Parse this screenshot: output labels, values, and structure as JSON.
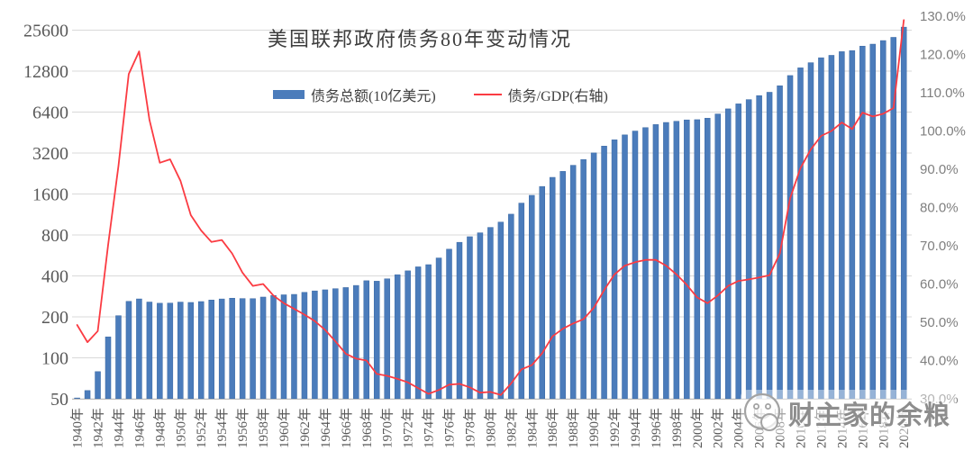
{
  "title": "美国联邦政府债务80年变动情况",
  "legend": {
    "bars_label": "债务总额(10亿美元)",
    "line_label": "债务/GDP(右轴)"
  },
  "watermark": {
    "text": "财主家的余粮",
    "icon": "smiley-face-logo"
  },
  "colors": {
    "bar_fill": "#4b7cbb",
    "bar_edge": "#3a68a3",
    "line": "#fb3b42",
    "gridline": "#d9d9d9",
    "axis_line": "#bfbfbf",
    "left_axis_text": "#595959",
    "x_axis_text": "#595959",
    "right_axis_text": "#7f7f7f",
    "title_text": "#3d3d3d"
  },
  "chart_data": {
    "type": "bar+line",
    "title": "美国联邦政府债务80年变动情况",
    "grid": "horizontal",
    "legend_position": "top-center",
    "left_axis": {
      "scale": "log2",
      "ticks": [
        25600,
        12800,
        6400,
        3200,
        1600,
        800,
        400,
        200,
        100,
        50
      ],
      "min": 50,
      "max": 25600,
      "label": "债务总额(10亿美元)"
    },
    "right_axis": {
      "scale": "linear",
      "ticks": [
        "130.0%",
        "120.0%",
        "110.0%",
        "100.0%",
        "90.0%",
        "80.0%",
        "70.0%",
        "60.0%",
        "50.0%",
        "40.0%",
        "30.0%"
      ],
      "min": 30,
      "max": 130,
      "label": "债务/GDP(右轴)"
    },
    "x_ticks": [
      "1940年",
      "1942年",
      "1944年",
      "1946年",
      "1948年",
      "1950年",
      "1952年",
      "1954年",
      "1956年",
      "1958年",
      "1960年",
      "1962年",
      "1964年",
      "1966年",
      "1968年",
      "1970年",
      "1972年",
      "1974年",
      "1976年",
      "1978年",
      "1980年",
      "1982年",
      "1984年",
      "1986年",
      "1988年",
      "1990年",
      "1992年",
      "1994年",
      "1996年",
      "1998年",
      "2000年",
      "2002年",
      "2004年",
      "2006年",
      "2008年",
      "2010年",
      "2012年",
      "2014年",
      "2016年",
      "2018年",
      "2020年"
    ],
    "categories": [
      1940,
      1941,
      1942,
      1943,
      1944,
      1945,
      1946,
      1947,
      1948,
      1949,
      1950,
      1951,
      1952,
      1953,
      1954,
      1955,
      1956,
      1957,
      1958,
      1959,
      1960,
      1961,
      1962,
      1963,
      1964,
      1965,
      1966,
      1967,
      1968,
      1969,
      1970,
      1971,
      1972,
      1973,
      1974,
      1975,
      1976,
      1977,
      1978,
      1979,
      1980,
      1981,
      1982,
      1983,
      1984,
      1985,
      1986,
      1987,
      1988,
      1989,
      1990,
      1991,
      1992,
      1993,
      1994,
      1995,
      1996,
      1997,
      1998,
      1999,
      2000,
      2001,
      2002,
      2003,
      2004,
      2005,
      2006,
      2007,
      2008,
      2009,
      2010,
      2011,
      2012,
      2013,
      2014,
      2015,
      2016,
      2017,
      2018,
      2019,
      2020
    ],
    "series": [
      {
        "name": "债务总额(10亿美元)",
        "type": "bar",
        "axis": "left",
        "values": [
          50.7,
          57.5,
          79.2,
          142.6,
          204.1,
          260.1,
          271.0,
          257.1,
          252.0,
          252.6,
          256.9,
          255.3,
          259.1,
          266.0,
          270.8,
          274.4,
          272.7,
          272.3,
          279.7,
          287.5,
          290.5,
          292.6,
          302.9,
          310.3,
          316.1,
          322.3,
          328.5,
          340.4,
          368.7,
          365.8,
          380.9,
          408.2,
          435.9,
          466.3,
          483.9,
          541.9,
          629.0,
          706.4,
          776.6,
          829.5,
          909.0,
          994.8,
          1137.3,
          1371.7,
          1564.6,
          1817.4,
          2120.5,
          2346.0,
          2601.1,
          2867.8,
          3206.3,
          3598.2,
          4001.8,
          4351.0,
          4643.3,
          4920.6,
          5181.5,
          5369.2,
          5478.2,
          5605.5,
          5628.7,
          5769.9,
          6198.4,
          6760.0,
          7354.7,
          7905.3,
          8451.4,
          8950.7,
          9986.1,
          11875.9,
          13528.8,
          14764.2,
          16050.9,
          16719.4,
          17794.5,
          18120.1,
          19539.5,
          20205.7,
          21462.3,
          22669.5,
          26945.4
        ]
      },
      {
        "name": "债务/GDP(右轴)",
        "type": "line",
        "axis": "right",
        "unit": "%",
        "values": [
          49.3,
          44.8,
          47.7,
          70.2,
          90.9,
          114.9,
          120.8,
          102.9,
          91.7,
          92.6,
          87.0,
          78.0,
          74.0,
          71.0,
          71.5,
          68.0,
          63.0,
          59.5,
          60.0,
          57.0,
          55.0,
          53.5,
          52.0,
          50.3,
          48.0,
          45.0,
          41.8,
          40.5,
          40.0,
          36.5,
          36.0,
          35.2,
          34.3,
          32.8,
          31.3,
          32.3,
          33.7,
          33.9,
          33.0,
          31.6,
          31.8,
          31.0,
          34.0,
          37.7,
          38.8,
          41.9,
          46.3,
          48.3,
          49.7,
          50.8,
          53.8,
          58.4,
          62.5,
          64.8,
          65.7,
          66.3,
          66.3,
          64.8,
          62.5,
          59.8,
          56.5,
          55.0,
          57.0,
          59.5,
          60.8,
          61.2,
          61.7,
          62.3,
          68.0,
          82.4,
          90.3,
          95.2,
          98.7,
          100.0,
          102.2,
          100.5,
          104.8,
          103.8,
          104.5,
          106.0,
          129.0
        ]
      }
    ]
  }
}
